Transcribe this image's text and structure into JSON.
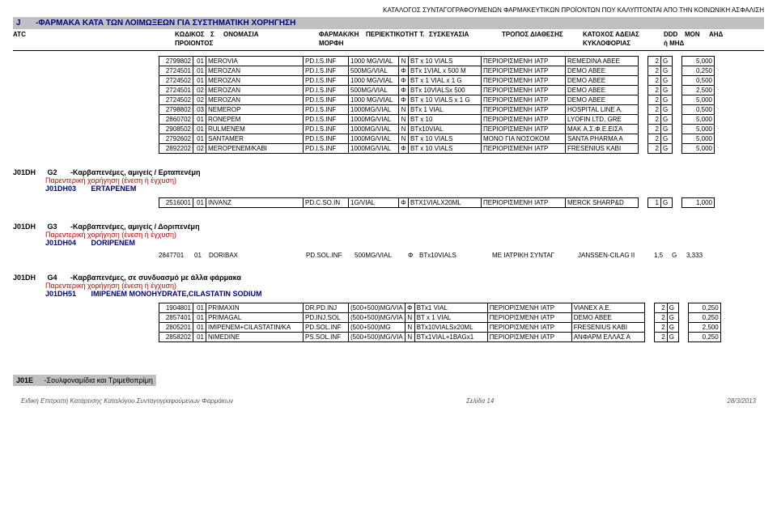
{
  "doc": {
    "top_header": "ΚΑΤΑΛΟΓΟΣ ΣΥΝΤΑΓΟΓΡΑΦΟΥΜΕΝΩΝ ΦΑΡΜΑΚΕΥΤΙΚΩΝ ΠΡΟΪΟΝΤΩΝ ΠΟΥ ΚΑΛΥΠΤΟΝΤΑΙ ΑΠΟ ΤΗΝ ΚΟΙΝΩΝΙΚΗ ΑΣΦΑΛΙΣΗ",
    "section_code": "J",
    "section_title": "-ΦΑΡΜΑΚΑ ΚΑΤΑ ΤΩΝ ΛΟΙΜΩΞΕΩΝ ΓΙΑ ΣΥΣΤΗΜΑΤΙΚΗ ΧΟΡΗΓΗΣΗ",
    "headers1": {
      "atc": "ATC",
      "kodikos": "ΚΩΔΙΚΟΣ",
      "s": "Σ",
      "onomasia": "ΟΝΟΜΑΣΙΑ",
      "farmak": "ΦΑΡΜΑΚ/ΚΗ",
      "periek": "ΠΕΡΙΕΚΤΙΚΟΤΗΤ Τ.",
      "syskev": "ΣΥΣΚΕΥΑΣΙΑ",
      "tropos": "ΤΡΟΠΟΣ ΔΙΑΘΕΣΗΣ",
      "katoxos": "ΚΑΤΟΧΟΣ ΑΔΕΙΑΣ",
      "ddd": "DDD",
      "mon": "MON",
      "ahd": "ΑΗΔ"
    },
    "headers2": {
      "proiontos": "ΠΡΟΙΟΝΤΟΣ",
      "morfi": "ΜΟΡΦΗ",
      "kykl": "ΚΥΚΛΟΦΟΡΙΑΣ",
      "hmhd": "ή ΜΗΔ"
    }
  },
  "table1": {
    "rows": [
      [
        "2799802",
        "01",
        "MEROVIA",
        "PD.I.S.INF",
        "1000 MG/VIAL",
        "N",
        "BT x 10 VIALS",
        "ΠΕΡΙΟΡΙΣΜΕΝΗ ΙΑΤΡ",
        "REMEDINA ABEE",
        "2",
        "G",
        "5,000"
      ],
      [
        "2724501",
        "01",
        "MEROZAN",
        "PD.I.S.INF",
        "500MG/VIAL",
        "Φ",
        "BTx 1VIAL x 500 M",
        "ΠΕΡΙΟΡΙΣΜΕΝΗ ΙΑΤΡ",
        "DEMO ABEE",
        "2",
        "G",
        "0,250"
      ],
      [
        "2724502",
        "01",
        "MEROZAN",
        "PD.I.S.INF",
        "1000 MG/VIAL",
        "Φ",
        "BT x 1 VIAL x 1 G",
        "ΠΕΡΙΟΡΙΣΜΕΝΗ ΙΑΤΡ",
        "DEMO ABEE",
        "2",
        "G",
        "0,500"
      ],
      [
        "2724501",
        "02",
        "MEROZAN",
        "PD.I.S.INF",
        "500MG/VIAL",
        "Φ",
        "BTx 10VIALSx 500",
        "ΠΕΡΙΟΡΙΣΜΕΝΗ ΙΑΤΡ",
        "DEMO ABEE",
        "2",
        "G",
        "2,500"
      ],
      [
        "2724502",
        "02",
        "MEROZAN",
        "PD.I.S.INF",
        "1000 MG/VIAL",
        "Φ",
        "BT x 10 VIALS x 1 G",
        "ΠΕΡΙΟΡΙΣΜΕΝΗ ΙΑΤΡ",
        "DEMO ABEE",
        "2",
        "G",
        "5,000"
      ],
      [
        "2798802",
        "03",
        "NEMEROP",
        "PD.I.S.INF",
        "1000MG/VIAL",
        "N",
        "BTx 1 VIAL",
        "ΠΕΡΙΟΡΙΣΜΕΝΗ ΙΑΤΡ",
        "HOSPITAL LINE A.",
        "2",
        "G",
        "0,500"
      ],
      [
        "2860702",
        "01",
        "RONEPEM",
        "PD.I.S.INF",
        "1000MG/VIAL",
        "N",
        "BT x 10",
        "ΠΕΡΙΟΡΙΣΜΕΝΗ ΙΑΤΡ",
        "LYOFIN LTD, GRE",
        "2",
        "G",
        "5,000"
      ],
      [
        "2908502",
        "01",
        "RULMENEM",
        "PD.I.S.INF",
        "1000MG/VIAL",
        "N",
        "BTx10VIAL",
        "ΠΕΡΙΟΡΙΣΜΕΝΗ ΙΑΤΡ",
        "MAK Α.Σ.Φ.Ε.ΕΙΣΑ",
        "2",
        "G",
        "5,000"
      ],
      [
        "2792602",
        "01",
        "SANTAMER",
        "PD.I.S.INF",
        "1000MG/VIAL",
        "N",
        "BT x 10 VIALS",
        "ΜΟΝΟ ΓΙΑ ΝΟΣΟΚΟΜ",
        "SANTA PHARMA A",
        "2",
        "G",
        "5,000"
      ],
      [
        "2892202",
        "02",
        "MEROPENEM/KABI",
        "PD.I.S.INF",
        "1000MG/VIAL",
        "Φ",
        "BT x 10 VIALS",
        "ΠΕΡΙΟΡΙΣΜΕΝΗ ΙΑΤΡ",
        "FRESENIUS KABI",
        "2",
        "G",
        "5,000"
      ]
    ]
  },
  "g2": {
    "code": "J01DH",
    "num": "G2",
    "title": "-Καρβαπενέμες, αμιγείς / Ερταπενέμη",
    "red": "Παρεντερική χορήγηση (ένεση ή έγχυση)",
    "sub_code": "J01DH03",
    "sub_name": "ERTAPENEM",
    "row": [
      "2516001",
      "01",
      "INVANZ",
      "PD.C.SO.IN",
      "1G/VIAL",
      "Φ",
      "BTX1VIALX20ML",
      "ΠΕΡΙΟΡΙΣΜΕΝΗ ΙΑΤΡ",
      "MERCK SHARP&D",
      "1",
      "G",
      "1,000"
    ]
  },
  "g3": {
    "code": "J01DH",
    "num": "G3",
    "title": "-Καρβαπενέμες, αμιγείς / Δοριπενέμη",
    "red": "Παρεντερική χορήγηση (ένεση ή έγχυση)",
    "sub_code": "J01DH04",
    "sub_name": "DORIPENEM",
    "row": [
      "2847701",
      "01",
      "DORIBAX",
      "PD.SOL.INF",
      "500MG/VIAL",
      "Φ",
      "BTx10VIALS",
      "ΜΕ ΙΑΤΡΙΚΗ ΣΥΝΤΑΓ",
      "JANSSEN-CILAG II",
      "1,5",
      "G",
      "3,333"
    ]
  },
  "g4": {
    "code": "J01DH",
    "num": "G4",
    "title": "-Καρβαπενέμες, σε συνδυασμό με άλλα φάρμακα",
    "red": "Παρεντερική χορήγηση (ένεση ή έγχυση)",
    "sub_code": "J01DH51",
    "sub_name": "IMIPENEM MONOHYDRATE,CILASTATIN SODIUM",
    "rows": [
      [
        "1904801",
        "01",
        "PRIMAXIN",
        "DR.PD.INJ",
        "(500+500)MG/VIA",
        "Φ",
        "BTx1 VIAL",
        "ΠΕΡΙΟΡΙΣΜΕΝΗ ΙΑΤΡ",
        "VIANEX A.E.",
        "2",
        "G",
        "0,250"
      ],
      [
        "2857401",
        "01",
        "PRIMAGAL",
        "PD.INJ.SOL",
        "(500+500)MG/VIA",
        "N",
        "BT x 1 VIAL",
        "ΠΕΡΙΟΡΙΣΜΕΝΗ ΙΑΤΡ",
        "DEMO ABEE",
        "2",
        "G",
        "0,250"
      ],
      [
        "2805201",
        "01",
        "IMIPENEM+CILASTATIN/KA",
        "PD.SOL.INF",
        "(500+500)MG",
        "N",
        "BTx10VIALSx20ML",
        "ΠΕΡΙΟΡΙΣΜΕΝΗ ΙΑΤΡ",
        "FRESENIUS KABI",
        "2",
        "G",
        "2,500"
      ],
      [
        "2858202",
        "01",
        "NIMEDINE",
        "PS.SOL.INF",
        "(500+500)MG/VIA",
        "N",
        "BTx1VIAL+1BAGx1",
        "ΠΕΡΙΟΡΙΣΜΕΝΗ ΙΑΤΡ",
        "ΑΝΦΑΡΜ ΕΛΛΑΣ Α",
        "2",
        "G",
        "0,250"
      ]
    ]
  },
  "j01e": {
    "code": "J01E",
    "title": "-Σουλφοναμίδια και Τριμεθοπρίμη"
  },
  "footer": {
    "left": "Ειδική Επιτροπή Κατάρτισης Καταλόγου Συνταγογραφούμενων Φαρμάκων",
    "center": "Σελίδα 14",
    "right": "28/3/2013"
  }
}
